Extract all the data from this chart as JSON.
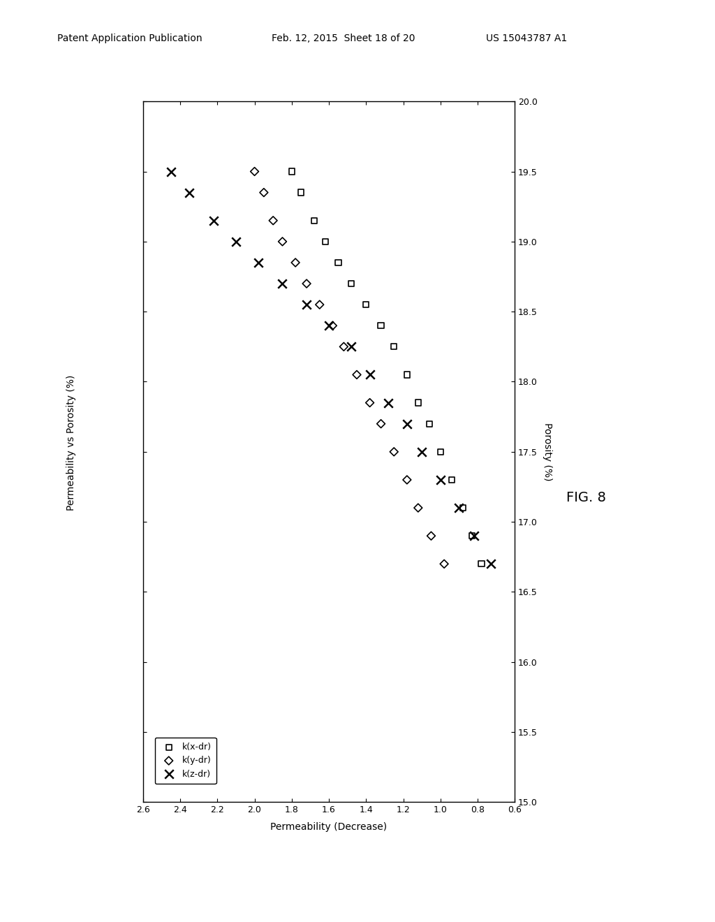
{
  "title": "",
  "xlabel": "Permeability (Decrease)",
  "ylabel_left": "Permeability vs Porosity (%)",
  "ylabel_right": "Porosity (%)",
  "xlim": [
    2.6,
    0.6
  ],
  "ylim": [
    15,
    20
  ],
  "xticks": [
    2.6,
    2.4,
    2.2,
    2.0,
    1.8,
    1.6,
    1.4,
    1.2,
    1.0,
    0.8,
    0.6
  ],
  "yticks": [
    15,
    15.5,
    16,
    16.5,
    17,
    17.5,
    18,
    18.5,
    19,
    19.5,
    20
  ],
  "background_color": "#ffffff",
  "header1": "Patent Application Publication",
  "header2": "Feb. 12, 2015  Sheet 18 of 20",
  "header3": "US 15043787 A1",
  "fig_label": "FIG. 8",
  "series": {
    "kx": {
      "label": "k(x-dr)",
      "marker": "s",
      "color": "black",
      "markersize": 6,
      "x": [
        1.8,
        1.75,
        1.68,
        1.62,
        1.55,
        1.48,
        1.4,
        1.32,
        1.25,
        1.18,
        1.12,
        1.06,
        1.0,
        0.94,
        0.88,
        0.83,
        0.78
      ],
      "y": [
        19.5,
        19.35,
        19.15,
        19.0,
        18.85,
        18.7,
        18.55,
        18.4,
        18.25,
        18.05,
        17.85,
        17.7,
        17.5,
        17.3,
        17.1,
        16.9,
        16.7
      ]
    },
    "ky": {
      "label": "k(y-dr)",
      "marker": "D",
      "color": "black",
      "markersize": 6,
      "x": [
        2.0,
        1.95,
        1.9,
        1.85,
        1.78,
        1.72,
        1.65,
        1.58,
        1.52,
        1.45,
        1.38,
        1.32,
        1.25,
        1.18,
        1.12,
        1.05,
        0.98
      ],
      "y": [
        19.5,
        19.35,
        19.15,
        19.0,
        18.85,
        18.7,
        18.55,
        18.4,
        18.25,
        18.05,
        17.85,
        17.7,
        17.5,
        17.3,
        17.1,
        16.9,
        16.7
      ]
    },
    "kz": {
      "label": "k(z-dr)",
      "marker": "x",
      "color": "black",
      "markersize": 9,
      "x": [
        2.45,
        2.35,
        2.22,
        2.1,
        1.98,
        1.85,
        1.72,
        1.6,
        1.48,
        1.38,
        1.28,
        1.18,
        1.1,
        1.0,
        0.9,
        0.82,
        0.73
      ],
      "y": [
        19.5,
        19.35,
        19.15,
        19.0,
        18.85,
        18.7,
        18.55,
        18.4,
        18.25,
        18.05,
        17.85,
        17.7,
        17.5,
        17.3,
        17.1,
        16.9,
        16.7
      ]
    }
  }
}
